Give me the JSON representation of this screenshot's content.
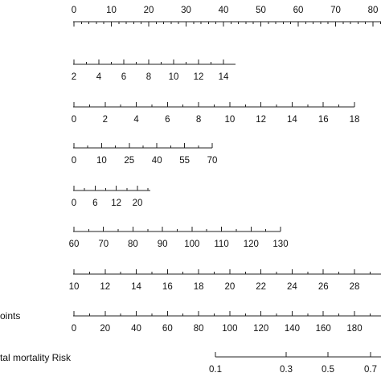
{
  "chart_data": {
    "type": "nomogram",
    "title": "",
    "rows": [
      {
        "label": "",
        "ticks": [
          "0",
          "10",
          "20",
          "30",
          "40",
          "50",
          "60",
          "70",
          "80"
        ],
        "minor_per_interval": 4
      },
      {
        "label": "",
        "ticks": [
          "2",
          "4",
          "6",
          "8",
          "10",
          "12",
          "14"
        ],
        "minor_per_interval": 1
      },
      {
        "label": "",
        "ticks": [
          "0",
          "2",
          "4",
          "6",
          "8",
          "10",
          "12",
          "14",
          "16",
          "18"
        ],
        "minor_per_interval": 1
      },
      {
        "label": "",
        "ticks": [
          "0",
          "10",
          "25",
          "40",
          "55",
          "70"
        ],
        "minor_per_interval": 1
      },
      {
        "label": "",
        "ticks": [
          "0",
          "6",
          "12",
          "20"
        ],
        "minor_per_interval": 1
      },
      {
        "label": "",
        "ticks": [
          "60",
          "70",
          "80",
          "90",
          "100",
          "110",
          "120",
          "130"
        ],
        "minor_per_interval": 1
      },
      {
        "label": "",
        "ticks": [
          "10",
          "12",
          "14",
          "16",
          "18",
          "20",
          "22",
          "24",
          "26",
          "28"
        ],
        "minor_per_interval": 1
      },
      {
        "label": "oints",
        "ticks": [
          "0",
          "20",
          "40",
          "60",
          "80",
          "100",
          "120",
          "140",
          "160",
          "180"
        ],
        "minor_per_interval": 1
      },
      {
        "label": "tal mortality Risk",
        "ticks": [
          "0.1",
          "0.3",
          "0.5",
          "0.7"
        ],
        "minor_per_interval": 0
      }
    ]
  }
}
